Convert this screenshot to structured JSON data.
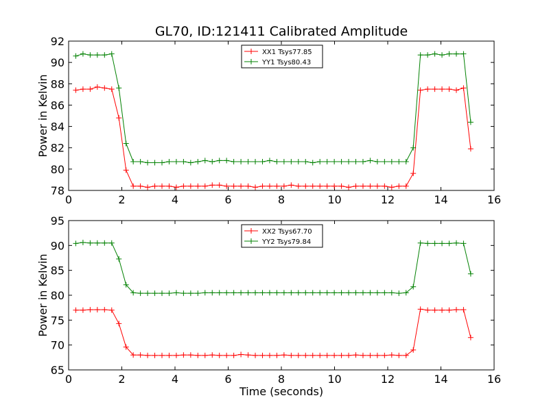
{
  "chart_data": {
    "title": "GL70, ID:121411 Calibrated Amplitude",
    "xlabel": "Time (seconds)",
    "colors": {
      "xx": "#ff0000",
      "yy": "#008000"
    },
    "panels": [
      {
        "type": "line",
        "ylabel": "Power in Kelvin",
        "xlim": [
          0,
          16
        ],
        "ylim": [
          78,
          92
        ],
        "xticks": [
          "0",
          "2",
          "4",
          "6",
          "8",
          "10",
          "12",
          "14",
          "16"
        ],
        "yticks": [
          "78",
          "80",
          "82",
          "84",
          "86",
          "88",
          "90",
          "92"
        ],
        "legend_position": "top-center",
        "grid": false,
        "series": [
          {
            "name": "XX1 Tsys77.85",
            "color": "#ff0000",
            "x": [
              0.27,
              0.54,
              0.81,
              1.08,
              1.35,
              1.62,
              1.89,
              2.16,
              2.43,
              2.7,
              2.97,
              3.24,
              3.51,
              3.78,
              4.05,
              4.32,
              4.59,
              4.86,
              5.13,
              5.4,
              5.67,
              5.94,
              6.21,
              6.48,
              6.75,
              7.02,
              7.29,
              7.56,
              7.83,
              8.1,
              8.37,
              8.64,
              8.91,
              9.18,
              9.45,
              9.72,
              9.99,
              10.26,
              10.53,
              10.8,
              11.07,
              11.34,
              11.61,
              11.88,
              12.15,
              12.42,
              12.69,
              12.96,
              13.23,
              13.5,
              13.77,
              14.04,
              14.31,
              14.58,
              14.85,
              15.12
            ],
            "y": [
              87.4,
              87.5,
              87.5,
              87.7,
              87.6,
              87.5,
              84.8,
              79.9,
              78.4,
              78.4,
              78.3,
              78.4,
              78.4,
              78.4,
              78.3,
              78.4,
              78.4,
              78.4,
              78.4,
              78.5,
              78.5,
              78.4,
              78.4,
              78.4,
              78.4,
              78.3,
              78.4,
              78.4,
              78.4,
              78.4,
              78.5,
              78.4,
              78.4,
              78.4,
              78.4,
              78.4,
              78.4,
              78.4,
              78.3,
              78.4,
              78.4,
              78.4,
              78.4,
              78.4,
              78.3,
              78.4,
              78.4,
              79.6,
              87.4,
              87.5,
              87.5,
              87.5,
              87.5,
              87.4,
              87.6,
              81.9
            ]
          },
          {
            "name": "YY1 Tsys80.43",
            "color": "#008000",
            "x": [
              0.27,
              0.54,
              0.81,
              1.08,
              1.35,
              1.62,
              1.89,
              2.16,
              2.43,
              2.7,
              2.97,
              3.24,
              3.51,
              3.78,
              4.05,
              4.32,
              4.59,
              4.86,
              5.13,
              5.4,
              5.67,
              5.94,
              6.21,
              6.48,
              6.75,
              7.02,
              7.29,
              7.56,
              7.83,
              8.1,
              8.37,
              8.64,
              8.91,
              9.18,
              9.45,
              9.72,
              9.99,
              10.26,
              10.53,
              10.8,
              11.07,
              11.34,
              11.61,
              11.88,
              12.15,
              12.42,
              12.69,
              12.96,
              13.23,
              13.5,
              13.77,
              14.04,
              14.31,
              14.58,
              14.85,
              15.12
            ],
            "y": [
              90.6,
              90.8,
              90.7,
              90.7,
              90.7,
              90.8,
              87.6,
              82.4,
              80.7,
              80.7,
              80.6,
              80.6,
              80.6,
              80.7,
              80.7,
              80.7,
              80.6,
              80.7,
              80.8,
              80.7,
              80.8,
              80.8,
              80.7,
              80.7,
              80.7,
              80.7,
              80.7,
              80.8,
              80.7,
              80.7,
              80.7,
              80.7,
              80.7,
              80.6,
              80.7,
              80.7,
              80.7,
              80.7,
              80.7,
              80.7,
              80.7,
              80.8,
              80.7,
              80.7,
              80.7,
              80.7,
              80.7,
              82.0,
              90.7,
              90.7,
              90.8,
              90.7,
              90.8,
              90.8,
              90.8,
              84.4
            ]
          }
        ]
      },
      {
        "type": "line",
        "ylabel": "Power in Kelvin",
        "xlim": [
          0,
          16
        ],
        "ylim": [
          65,
          95
        ],
        "xticks": [
          "0",
          "2",
          "4",
          "6",
          "8",
          "10",
          "12",
          "14",
          "16"
        ],
        "yticks": [
          "65",
          "70",
          "75",
          "80",
          "85",
          "90",
          "95"
        ],
        "legend_position": "top-center",
        "grid": false,
        "series": [
          {
            "name": "XX2 Tsys67.70",
            "color": "#ff0000",
            "x": [
              0.27,
              0.54,
              0.81,
              1.08,
              1.35,
              1.62,
              1.89,
              2.16,
              2.43,
              2.7,
              2.97,
              3.24,
              3.51,
              3.78,
              4.05,
              4.32,
              4.59,
              4.86,
              5.13,
              5.4,
              5.67,
              5.94,
              6.21,
              6.48,
              6.75,
              7.02,
              7.29,
              7.56,
              7.83,
              8.1,
              8.37,
              8.64,
              8.91,
              9.18,
              9.45,
              9.72,
              9.99,
              10.26,
              10.53,
              10.8,
              11.07,
              11.34,
              11.61,
              11.88,
              12.15,
              12.42,
              12.69,
              12.96,
              13.23,
              13.5,
              13.77,
              14.04,
              14.31,
              14.58,
              14.85,
              15.12
            ],
            "y": [
              77.0,
              77.0,
              77.1,
              77.1,
              77.1,
              77.0,
              74.3,
              69.6,
              68.0,
              68.0,
              67.9,
              67.9,
              67.9,
              67.9,
              67.9,
              68.0,
              68.0,
              67.9,
              67.9,
              68.0,
              67.9,
              67.9,
              67.9,
              68.1,
              68.0,
              67.9,
              67.9,
              67.9,
              67.9,
              68.0,
              67.9,
              67.9,
              67.9,
              67.9,
              67.9,
              67.9,
              67.9,
              67.9,
              67.9,
              68.0,
              67.9,
              67.9,
              67.9,
              67.9,
              68.0,
              67.9,
              67.9,
              69.0,
              77.2,
              77.0,
              77.0,
              77.0,
              77.0,
              77.1,
              77.1,
              71.5
            ]
          },
          {
            "name": "YY2 Tsys79.84",
            "color": "#008000",
            "x": [
              0.27,
              0.54,
              0.81,
              1.08,
              1.35,
              1.62,
              1.89,
              2.16,
              2.43,
              2.7,
              2.97,
              3.24,
              3.51,
              3.78,
              4.05,
              4.32,
              4.59,
              4.86,
              5.13,
              5.4,
              5.67,
              5.94,
              6.21,
              6.48,
              6.75,
              7.02,
              7.29,
              7.56,
              7.83,
              8.1,
              8.37,
              8.64,
              8.91,
              9.18,
              9.45,
              9.72,
              9.99,
              10.26,
              10.53,
              10.8,
              11.07,
              11.34,
              11.61,
              11.88,
              12.15,
              12.42,
              12.69,
              12.96,
              13.23,
              13.5,
              13.77,
              14.04,
              14.31,
              14.58,
              14.85,
              15.12
            ],
            "y": [
              90.4,
              90.6,
              90.5,
              90.5,
              90.5,
              90.5,
              87.3,
              82.1,
              80.5,
              80.4,
              80.4,
              80.4,
              80.4,
              80.4,
              80.5,
              80.4,
              80.4,
              80.4,
              80.5,
              80.5,
              80.5,
              80.5,
              80.5,
              80.5,
              80.5,
              80.5,
              80.5,
              80.5,
              80.5,
              80.5,
              80.5,
              80.5,
              80.5,
              80.5,
              80.5,
              80.5,
              80.5,
              80.5,
              80.5,
              80.5,
              80.5,
              80.5,
              80.5,
              80.5,
              80.5,
              80.4,
              80.5,
              81.7,
              90.5,
              90.4,
              90.4,
              90.4,
              90.4,
              90.5,
              90.4,
              84.3
            ]
          }
        ]
      }
    ]
  }
}
